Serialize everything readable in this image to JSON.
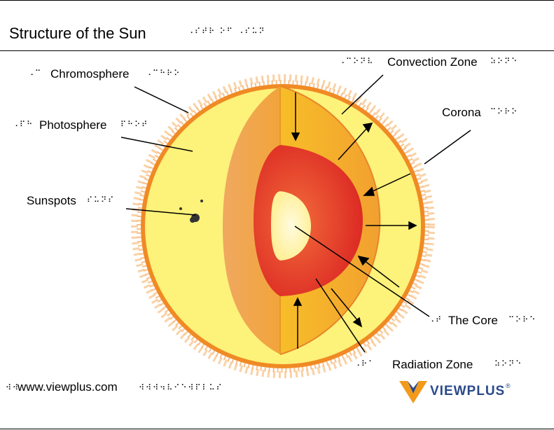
{
  "title": "Structure of the Sun",
  "labels": {
    "chromosphere": "Chromosphere",
    "photosphere": "Photosphere",
    "sunspots": "Sunspots",
    "convection_zone": "Convection Zone",
    "corona": "Corona",
    "core": "The Core",
    "radiation_zone": "Radiation Zone"
  },
  "footer": {
    "url": "www.viewplus.com",
    "logo_text": "VIEWPLUS",
    "logo_mark": "®"
  },
  "colors": {
    "photosphere": "#fdf27a",
    "chromosphere_ring": "#f08a24",
    "convection": "#f5a623",
    "radiation": "#e0302a",
    "core": "#fff6b0",
    "logo_orange": "#f29a1b",
    "logo_blue": "#2a4a8a"
  }
}
